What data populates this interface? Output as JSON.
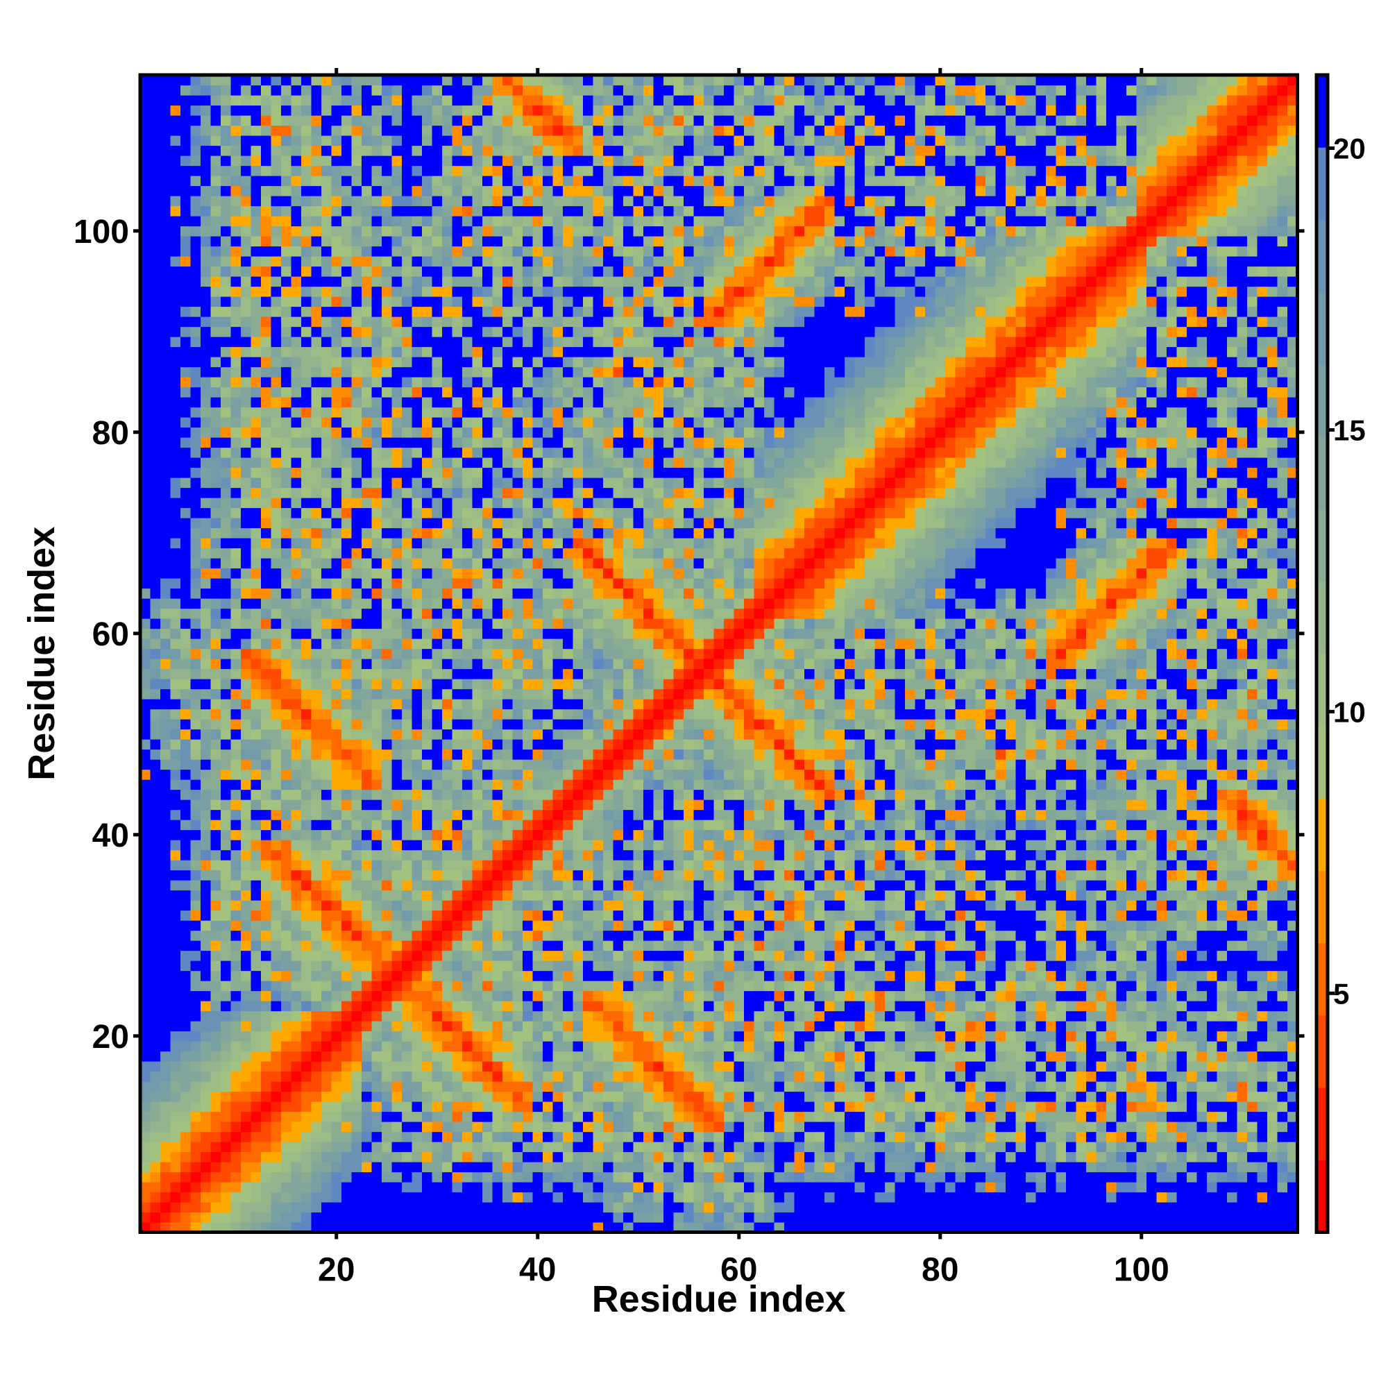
{
  "chart_data": {
    "type": "heatmap",
    "title": "",
    "xlabel": "Residue index",
    "ylabel": "Residue index",
    "n_residues": 115,
    "xlim": [
      0.5,
      115.5
    ],
    "ylim": [
      0.5,
      115.5
    ],
    "xticks": [
      20,
      40,
      60,
      80,
      100
    ],
    "yticks": [
      20,
      40,
      60,
      80,
      100
    ],
    "colorbar": {
      "range": [
        0.76,
        21.3
      ],
      "ticks": [
        5,
        10,
        15,
        20
      ],
      "bins": 16,
      "colors": [
        "#ff0000",
        "#ff2000",
        "#ff4a00",
        "#ff6a00",
        "#ff8c00",
        "#ffa800",
        "#a3c27f",
        "#9bbc86",
        "#93b48c",
        "#8aac93",
        "#82a69b",
        "#7aa0a3",
        "#729aab",
        "#6a92b5",
        "#5f88c2",
        "#0000ff"
      ],
      "above_color": "#0000ff"
    },
    "matrix_model": {
      "symmetric": true,
      "background_value": 25,
      "helix_segments": [
        [
          1,
          22
        ],
        [
          62,
          100
        ],
        [
          100,
          115
        ]
      ],
      "pairings": [
        {
          "type": "antiparallel",
          "i": [
            15,
            25
          ],
          "j": [
            27,
            37
          ],
          "sum": 52
        },
        {
          "type": "antiparallel",
          "i": [
            13,
            22
          ],
          "j": [
            47,
            56
          ],
          "sum": 69
        },
        {
          "type": "antiparallel",
          "i": [
            46,
            56
          ],
          "j": [
            57,
            67
          ],
          "sum": 113
        },
        {
          "type": "parallel",
          "i": [
            59,
            67
          ],
          "j": [
            93,
            101
          ],
          "offset": 34
        },
        {
          "type": "antiparallel",
          "i": [
            38,
            42
          ],
          "j": [
            110,
            114
          ],
          "sum": 152
        }
      ],
      "contact_regions": [
        {
          "i": [
            8,
            24
          ],
          "j": [
            40,
            115
          ],
          "density": 0.78
        },
        {
          "i": [
            3,
            25
          ],
          "j": [
            48,
            62
          ],
          "density": 0.85
        },
        {
          "i": [
            8,
            32
          ],
          "j": [
            25,
            46
          ],
          "density": 0.82
        },
        {
          "i": [
            30,
            66
          ],
          "j": [
            96,
            115
          ],
          "density": 0.75
        },
        {
          "i": [
            42,
            62
          ],
          "j": [
            60,
            96
          ],
          "density": 0.8
        },
        {
          "i": [
            62,
            100
          ],
          "j": [
            96,
            115
          ],
          "density": 0.6
        },
        {
          "i": [
            20,
            46
          ],
          "j": [
            45,
            72
          ],
          "density": 0.78
        },
        {
          "i": [
            28,
            50
          ],
          "j": [
            28,
            46
          ],
          "density": 0.8
        },
        {
          "i": [
            45,
            60
          ],
          "j": [
            38,
            56
          ],
          "density": 0.8
        },
        {
          "i": [
            10,
            40
          ],
          "j": [
            62,
            100
          ],
          "density": 0.55
        },
        {
          "i": [
            60,
            80
          ],
          "j": [
            100,
            115
          ],
          "density": 0.55
        },
        {
          "i": [
            40,
            62
          ],
          "j": [
            62,
            75
          ],
          "density": 0.7
        }
      ]
    }
  }
}
